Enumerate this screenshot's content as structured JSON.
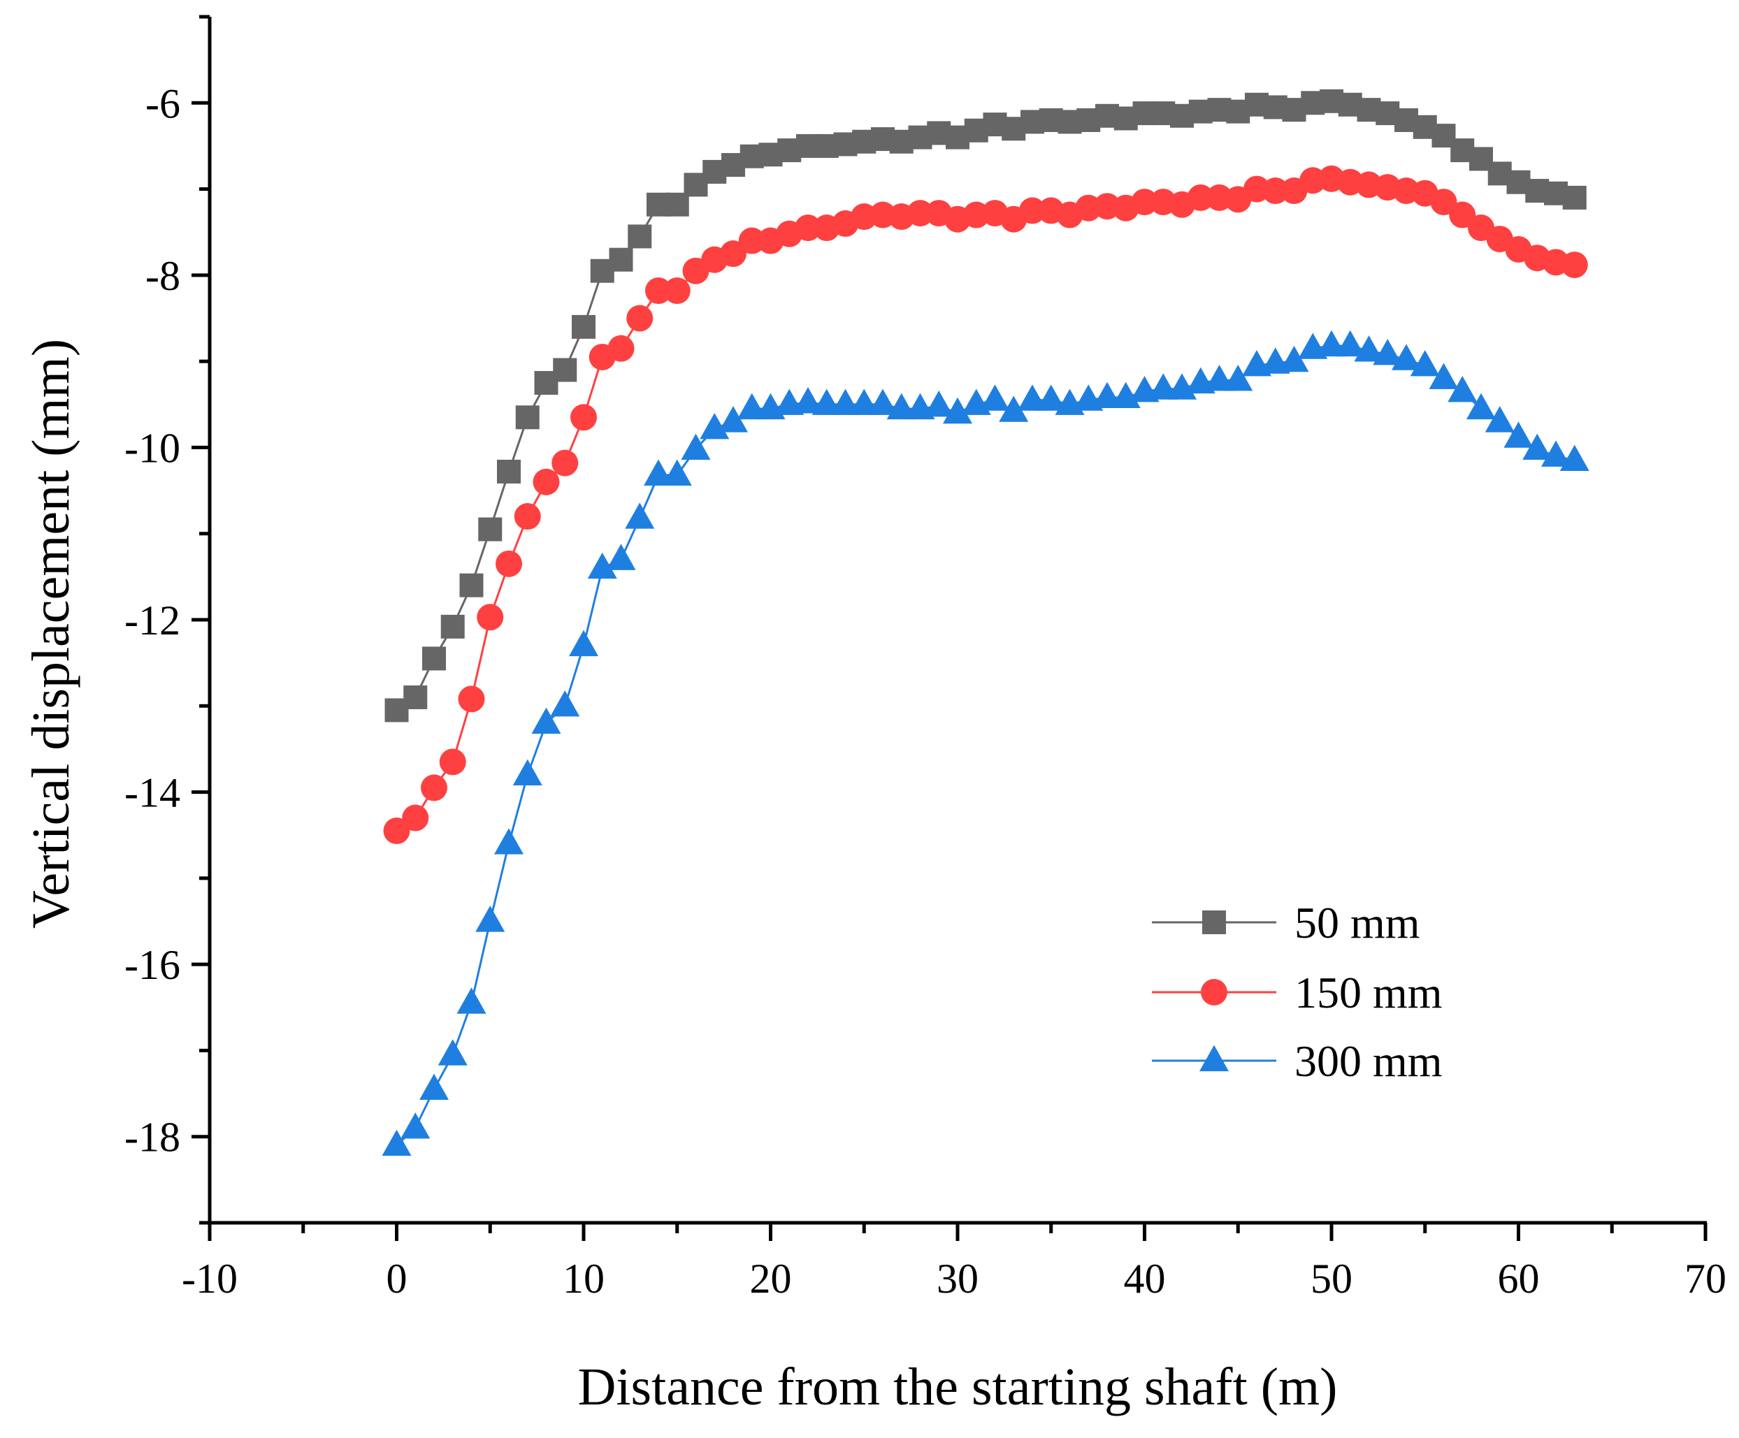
{
  "chart_data": {
    "type": "line",
    "title": "",
    "xlabel": "Distance from the starting shaft (m)",
    "ylabel": "Vertical displacement (mm)",
    "xlim": [
      -10,
      70
    ],
    "ylim": [
      -19,
      -5
    ],
    "xticks": [
      -10,
      0,
      10,
      20,
      30,
      40,
      50,
      60,
      70
    ],
    "yticks": [
      -18,
      -16,
      -14,
      -12,
      -10,
      -8,
      -6
    ],
    "xtick_labels": [
      "-10",
      "0",
      "10",
      "20",
      "30",
      "40",
      "50",
      "60",
      "70"
    ],
    "ytick_labels": [
      "-18",
      "-16",
      "-14",
      "-12",
      "-10",
      "-8",
      "-6"
    ],
    "grid": false,
    "legend_position": "lower-right",
    "x": [
      0,
      1,
      2,
      3,
      4,
      5,
      6,
      7,
      8,
      9,
      10,
      11,
      12,
      13,
      14,
      15,
      16,
      17,
      18,
      19,
      20,
      21,
      22,
      23,
      24,
      25,
      26,
      27,
      28,
      29,
      30,
      31,
      32,
      33,
      34,
      35,
      36,
      37,
      38,
      39,
      40,
      41,
      42,
      43,
      44,
      45,
      46,
      47,
      48,
      49,
      50,
      51,
      52,
      53,
      54,
      55,
      56,
      57,
      58,
      59,
      60,
      61,
      62,
      63
    ],
    "series": [
      {
        "name": "50 mm",
        "color": "#666666",
        "marker": "square",
        "values": [
          -13.05,
          -12.9,
          -12.45,
          -12.08,
          -11.6,
          -10.95,
          -10.28,
          -9.65,
          -9.25,
          -9.1,
          -8.6,
          -7.95,
          -7.82,
          -7.55,
          -7.18,
          -7.18,
          -6.95,
          -6.8,
          -6.72,
          -6.62,
          -6.6,
          -6.55,
          -6.5,
          -6.5,
          -6.48,
          -6.45,
          -6.42,
          -6.45,
          -6.4,
          -6.35,
          -6.4,
          -6.32,
          -6.25,
          -6.3,
          -6.22,
          -6.2,
          -6.22,
          -6.2,
          -6.15,
          -6.18,
          -6.12,
          -6.12,
          -6.15,
          -6.1,
          -6.08,
          -6.1,
          -6.02,
          -6.05,
          -6.08,
          -6.0,
          -5.98,
          -6.02,
          -6.08,
          -6.12,
          -6.2,
          -6.28,
          -6.38,
          -6.55,
          -6.65,
          -6.82,
          -6.92,
          -7.02,
          -7.05,
          -7.1
        ]
      },
      {
        "name": "150 mm",
        "color": "#ff4040",
        "marker": "circle",
        "values": [
          -14.45,
          -14.3,
          -13.95,
          -13.65,
          -12.92,
          -11.97,
          -11.35,
          -10.8,
          -10.4,
          -10.18,
          -9.65,
          -8.95,
          -8.85,
          -8.5,
          -8.18,
          -8.18,
          -7.95,
          -7.82,
          -7.75,
          -7.6,
          -7.6,
          -7.52,
          -7.45,
          -7.45,
          -7.4,
          -7.32,
          -7.3,
          -7.32,
          -7.28,
          -7.28,
          -7.35,
          -7.3,
          -7.28,
          -7.35,
          -7.25,
          -7.25,
          -7.3,
          -7.22,
          -7.2,
          -7.22,
          -7.15,
          -7.15,
          -7.18,
          -7.1,
          -7.1,
          -7.12,
          -7.0,
          -7.02,
          -7.02,
          -6.9,
          -6.88,
          -6.92,
          -6.95,
          -6.98,
          -7.02,
          -7.05,
          -7.15,
          -7.3,
          -7.45,
          -7.58,
          -7.7,
          -7.8,
          -7.85,
          -7.88
        ]
      },
      {
        "name": "300 mm",
        "color": "#1f7fe0",
        "marker": "triangle",
        "values": [
          -18.1,
          -17.9,
          -17.45,
          -17.05,
          -16.45,
          -15.5,
          -14.6,
          -13.8,
          -13.2,
          -13.0,
          -12.3,
          -11.4,
          -11.3,
          -10.82,
          -10.32,
          -10.32,
          -10.02,
          -9.78,
          -9.7,
          -9.55,
          -9.55,
          -9.5,
          -9.48,
          -9.5,
          -9.5,
          -9.5,
          -9.5,
          -9.55,
          -9.55,
          -9.52,
          -9.6,
          -9.5,
          -9.45,
          -9.58,
          -9.45,
          -9.45,
          -9.5,
          -9.45,
          -9.42,
          -9.42,
          -9.35,
          -9.32,
          -9.32,
          -9.25,
          -9.22,
          -9.22,
          -9.05,
          -9.02,
          -9.0,
          -8.85,
          -8.82,
          -8.82,
          -8.88,
          -8.92,
          -8.98,
          -9.05,
          -9.2,
          -9.35,
          -9.55,
          -9.7,
          -9.88,
          -10.02,
          -10.1,
          -10.15
        ]
      }
    ]
  }
}
